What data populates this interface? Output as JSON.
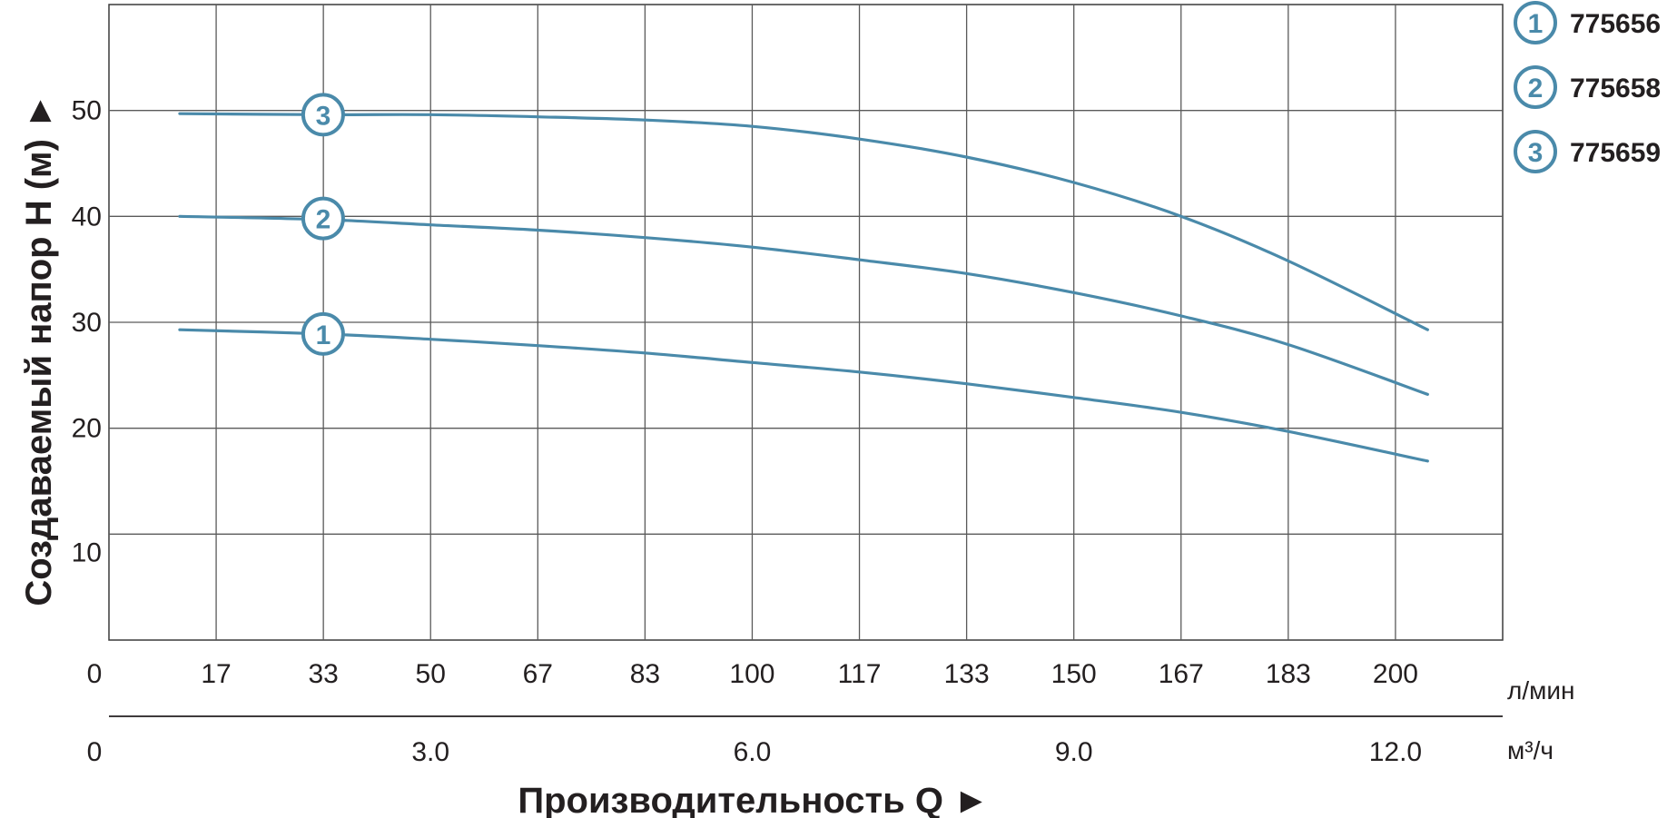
{
  "chart_data": {
    "type": "line",
    "ylabel": "Создаваемый напор Н (м) ►",
    "xlabel": "Производительность Q  ►",
    "x_unit_primary": "л/мин",
    "x_unit_secondary": "м³/ч",
    "x_primary_origin_label": "0",
    "x_secondary_origin_label": "0",
    "x_primary_ticks": [
      "17",
      "33",
      "50",
      "67",
      "83",
      "100",
      "117",
      "133",
      "150",
      "167",
      "183",
      "200"
    ],
    "x_secondary_ticks": [
      {
        "lpm": 50,
        "label": "3.0"
      },
      {
        "lpm": 100,
        "label": "6.0"
      },
      {
        "lpm": 150,
        "label": "9.0"
      },
      {
        "lpm": 200,
        "label": "12.0"
      }
    ],
    "y_ticks": [
      "10",
      "20",
      "30",
      "40",
      "50"
    ],
    "xlim": [
      0,
      216.7
    ],
    "ylim": [
      0,
      60
    ],
    "grid": true,
    "legend_position": "top-right",
    "line_color": "#4a8aaa",
    "marker_color": "#4a8aaa",
    "series": [
      {
        "name": "775656",
        "marker": "1",
        "marker_at": {
          "x": 33.3,
          "y": 28.9
        },
        "points": [
          [
            11,
            29.3
          ],
          [
            33.3,
            28.9
          ],
          [
            50,
            28.4
          ],
          [
            66.7,
            27.8
          ],
          [
            83.3,
            27.1
          ],
          [
            100,
            26.2
          ],
          [
            116.7,
            25.3
          ],
          [
            133.3,
            24.2
          ],
          [
            150,
            22.9
          ],
          [
            166.7,
            21.5
          ],
          [
            183.3,
            19.7
          ],
          [
            205,
            16.9
          ]
        ]
      },
      {
        "name": "775658",
        "marker": "2",
        "marker_at": {
          "x": 33.3,
          "y": 39.8
        },
        "points": [
          [
            11,
            40.0
          ],
          [
            33.3,
            39.7
          ],
          [
            50,
            39.2
          ],
          [
            66.7,
            38.7
          ],
          [
            83.3,
            38.0
          ],
          [
            100,
            37.1
          ],
          [
            116.7,
            35.9
          ],
          [
            133.3,
            34.6
          ],
          [
            150,
            32.8
          ],
          [
            166.7,
            30.6
          ],
          [
            183.3,
            27.9
          ],
          [
            205,
            23.2
          ]
        ]
      },
      {
        "name": "775659",
        "marker": "3",
        "marker_at": {
          "x": 33.3,
          "y": 49.6
        },
        "points": [
          [
            11,
            49.7
          ],
          [
            33.3,
            49.6
          ],
          [
            50,
            49.6
          ],
          [
            66.7,
            49.4
          ],
          [
            83.3,
            49.1
          ],
          [
            100,
            48.5
          ],
          [
            116.7,
            47.3
          ],
          [
            133.3,
            45.6
          ],
          [
            150,
            43.2
          ],
          [
            166.7,
            40.0
          ],
          [
            183.3,
            35.8
          ],
          [
            205,
            29.3
          ]
        ]
      }
    ]
  }
}
